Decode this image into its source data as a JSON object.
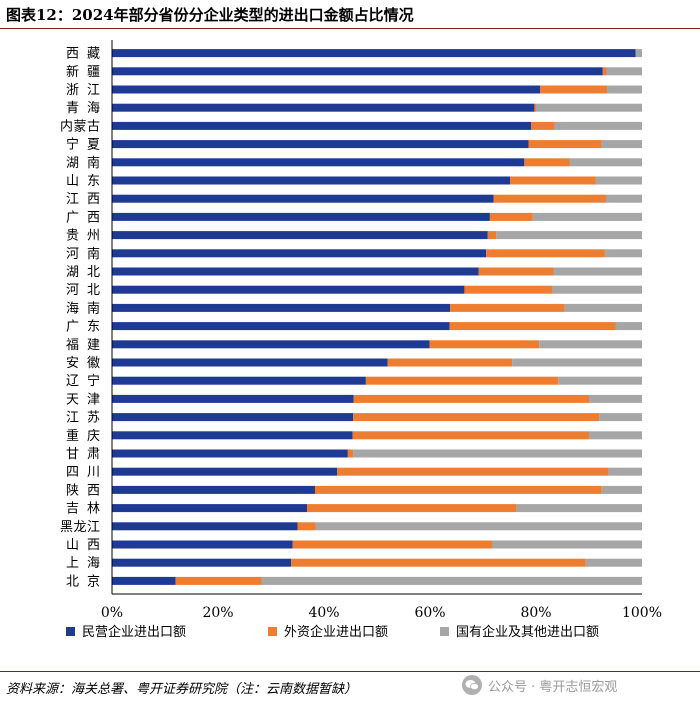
{
  "header": {
    "title": "图表12：2024年部分省份分企业类型的进出口金额占比情况"
  },
  "footer": {
    "source": "资料来源：海关总署、粤开证券研究院（注：云南数据暂缺）",
    "watermark": "公众号 · 粤开志恒宏观"
  },
  "chart_data": {
    "type": "bar",
    "orientation": "horizontal",
    "stacked": true,
    "percent": true,
    "categories": [
      "西藏",
      "新疆",
      "浙江",
      "青海",
      "内蒙古",
      "宁夏",
      "湖南",
      "山东",
      "江西",
      "广西",
      "贵州",
      "河南",
      "湖北",
      "河北",
      "海南",
      "广东",
      "福建",
      "安徽",
      "辽宁",
      "天津",
      "江苏",
      "重庆",
      "甘肃",
      "四川",
      "陕西",
      "吉林",
      "黑龙江",
      "山西",
      "上海",
      "北京"
    ],
    "series": [
      {
        "name": "民营企业进出口额",
        "color": "#1f3a93",
        "values": [
          98.8,
          92.6,
          80.8,
          79.7,
          79.1,
          78.6,
          77.8,
          75.1,
          72.0,
          71.3,
          70.9,
          70.6,
          69.2,
          66.5,
          63.8,
          63.7,
          59.9,
          52.0,
          47.9,
          45.6,
          45.5,
          45.4,
          44.5,
          42.5,
          38.3,
          36.8,
          35.0,
          34.1,
          33.8,
          12.0
        ]
      },
      {
        "name": "外资企业进出口额",
        "color": "#ed7d31",
        "values": [
          0.0,
          0.7,
          12.6,
          0.3,
          4.4,
          13.8,
          8.6,
          16.2,
          21.2,
          8.1,
          1.6,
          22.4,
          14.1,
          16.6,
          21.6,
          31.3,
          20.7,
          23.5,
          36.3,
          44.4,
          46.4,
          44.6,
          1.0,
          51.2,
          54.1,
          39.5,
          3.4,
          37.6,
          55.6,
          16.2
        ]
      },
      {
        "name": "国有企业及其他进出口额",
        "color": "#a6a6a6",
        "values": [
          1.2,
          6.7,
          6.6,
          20.0,
          16.5,
          7.6,
          13.6,
          8.7,
          6.8,
          20.6,
          27.5,
          7.0,
          16.7,
          16.9,
          14.6,
          5.0,
          19.4,
          24.5,
          15.8,
          10.0,
          8.1,
          10.0,
          54.5,
          6.3,
          7.6,
          23.7,
          61.6,
          28.3,
          10.6,
          71.8
        ]
      }
    ],
    "xlim": [
      0,
      100
    ],
    "xticks": [
      "0%",
      "20%",
      "40%",
      "60%",
      "80%",
      "100%"
    ],
    "legend_position": "bottom"
  }
}
